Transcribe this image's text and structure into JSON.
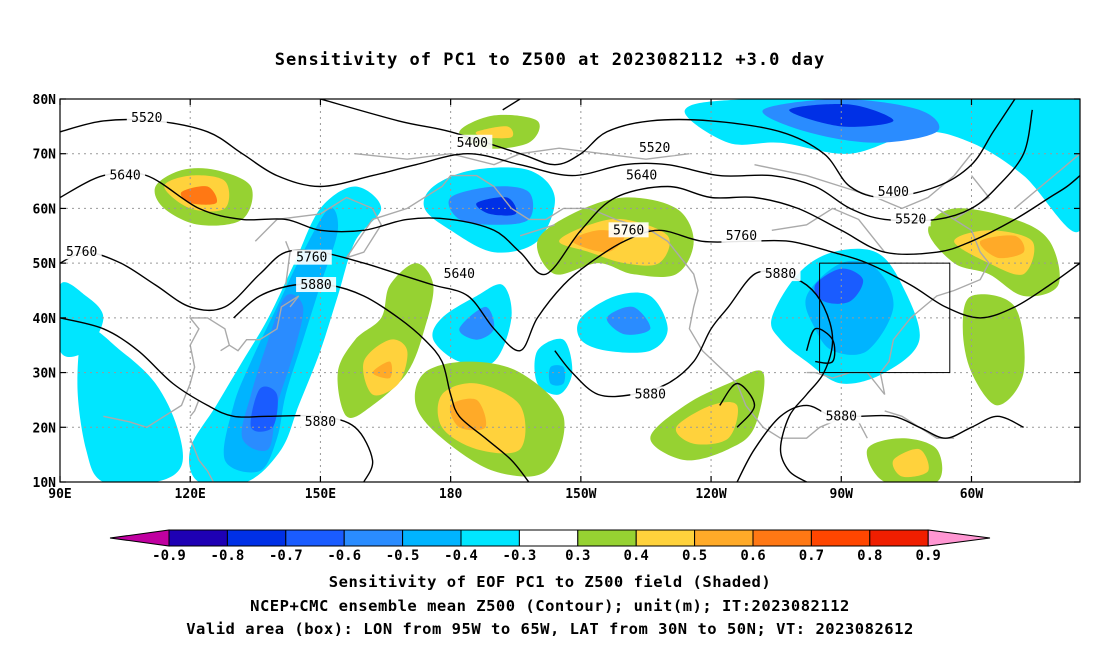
{
  "title": "Sensitivity of PC1 to Z500 at 2023082112 +3.0 day",
  "map": {
    "lat_ticks": [
      "80N",
      "70N",
      "60N",
      "50N",
      "40N",
      "30N",
      "20N",
      "10N"
    ],
    "lon_ticks": [
      "90E",
      "120E",
      "150E",
      "180",
      "150W",
      "120W",
      "90W",
      "60W"
    ]
  },
  "contours": [
    {
      "label": "5400"
    },
    {
      "label": "5520"
    },
    {
      "label": "5640"
    },
    {
      "label": "5760"
    },
    {
      "label": "5880"
    }
  ],
  "contour_labels": [
    {
      "text": "5520",
      "lon": 110,
      "lat": 76.5
    },
    {
      "text": "5400",
      "lon": 185,
      "lat": 72
    },
    {
      "text": "5520",
      "lon": 227,
      "lat": 71
    },
    {
      "text": "5640",
      "lon": 105,
      "lat": 66
    },
    {
      "text": "5640",
      "lon": 224,
      "lat": 66
    },
    {
      "text": "5400",
      "lon": 282,
      "lat": 63
    },
    {
      "text": "5520",
      "lon": 286,
      "lat": 58
    },
    {
      "text": "5760",
      "lon": 221,
      "lat": 56
    },
    {
      "text": "5760",
      "lon": 247,
      "lat": 55
    },
    {
      "text": "5760",
      "lon": 95,
      "lat": 52
    },
    {
      "text": "5760",
      "lon": 148,
      "lat": 51
    },
    {
      "text": "5640",
      "lon": 182,
      "lat": 48
    },
    {
      "text": "5880",
      "lon": 149,
      "lat": 46
    },
    {
      "text": "5880",
      "lon": 256,
      "lat": 48
    },
    {
      "text": "5880",
      "lon": 226,
      "lat": 26
    },
    {
      "text": "5880",
      "lon": 270,
      "lat": 22
    },
    {
      "text": "5880",
      "lon": 150,
      "lat": 21
    }
  ],
  "valid_box": {
    "lon_min": 265,
    "lon_max": 295,
    "lat_min": 30,
    "lat_max": 50
  },
  "colorbar": {
    "labels": [
      "-0.9",
      "-0.8",
      "-0.7",
      "-0.6",
      "-0.5",
      "-0.4",
      "-0.3",
      "0.3",
      "0.4",
      "0.5",
      "0.6",
      "0.7",
      "0.8",
      "0.9"
    ],
    "colors": [
      "#1e00b4",
      "#0030e6",
      "#1a5cff",
      "#2a8cff",
      "#00b4ff",
      "#00e6ff",
      "#ffffff",
      "#96d232",
      "#ffd23c",
      "#ffaa28",
      "#ff7814",
      "#ff4600",
      "#f01e00"
    ],
    "low_color": "#c000a0",
    "high_color": "#ff96d2"
  },
  "footer": {
    "line1": "Sensitivity of EOF PC1 to Z500 field (Shaded)",
    "line2": "NCEP+CMC ensemble mean Z500 (Contour); unit(m); IT:2023082112",
    "line3": "Valid area (box): LON from 95W to 65W, LAT from 30N to 50N; VT: 2023082612"
  }
}
